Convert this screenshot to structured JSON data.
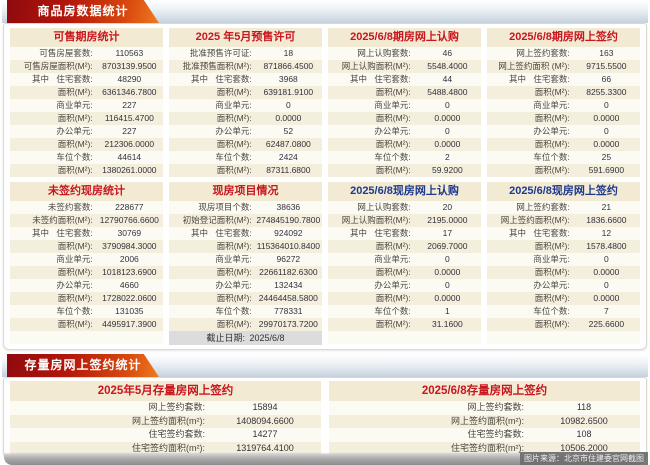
{
  "banners": [
    {
      "title": "商品房数据统计"
    },
    {
      "title": "存量房网上签约统计"
    }
  ],
  "colors": {
    "banner_red_dark": "#8f0a0e",
    "banner_orange": "#ef7b1f",
    "panel_title_red": "#c8161e",
    "panel_title_blue": "#1e3a8f",
    "panel_header_bg": "#f2ead3",
    "row_stripe_bg": "#f4eedd",
    "cutoff_footer_bg": "#dcdcdc"
  },
  "top_panels": [
    {
      "title": "可售期房统计",
      "title_color": "red",
      "rows": [
        {
          "prefix": "",
          "label": "可售房屋套数:",
          "value": "110563"
        },
        {
          "prefix": "",
          "label": "可售房屋面积(M²):",
          "value": "8703139.9500"
        },
        {
          "prefix": "其中",
          "label": "住宅套数:",
          "value": "48290"
        },
        {
          "prefix": "",
          "label": "面积(M²):",
          "value": "6361346.7800"
        },
        {
          "prefix": "",
          "label": "商业单元:",
          "value": "227"
        },
        {
          "prefix": "",
          "label": "面积(M²):",
          "value": "116415.4700"
        },
        {
          "prefix": "",
          "label": "办公单元:",
          "value": "227"
        },
        {
          "prefix": "",
          "label": "面积(M²):",
          "value": "212306.0000"
        },
        {
          "prefix": "",
          "label": "车位个数:",
          "value": "44614"
        },
        {
          "prefix": "",
          "label": "面积(M²):",
          "value": "1380261.0000"
        }
      ]
    },
    {
      "title": "2025 年5月预售许可",
      "title_color": "red",
      "rows": [
        {
          "prefix": "",
          "label": "批准预售许可证:",
          "value": "18"
        },
        {
          "prefix": "",
          "label": "批准预售面积(M²):",
          "value": "871866.4500"
        },
        {
          "prefix": "其中",
          "label": "住宅套数:",
          "value": "3968"
        },
        {
          "prefix": "",
          "label": "面积(M²):",
          "value": "639181.9100"
        },
        {
          "prefix": "",
          "label": "商业单元:",
          "value": "0"
        },
        {
          "prefix": "",
          "label": "面积(M²):",
          "value": "0.0000"
        },
        {
          "prefix": "",
          "label": "办公单元:",
          "value": "52"
        },
        {
          "prefix": "",
          "label": "面积(M²):",
          "value": "62487.0800"
        },
        {
          "prefix": "",
          "label": "车位个数:",
          "value": "2424"
        },
        {
          "prefix": "",
          "label": "面积(M²):",
          "value": "87311.6800"
        }
      ]
    },
    {
      "title": "2025/6/8期房网上认购",
      "title_color": "red",
      "rows": [
        {
          "prefix": "",
          "label": "网上认购套数:",
          "value": "46"
        },
        {
          "prefix": "",
          "label": "网上认购面积(M²):",
          "value": "5548.4000"
        },
        {
          "prefix": "其中",
          "label": "住宅套数:",
          "value": "44"
        },
        {
          "prefix": "",
          "label": "面积(M²):",
          "value": "5488.4800"
        },
        {
          "prefix": "",
          "label": "商业单元:",
          "value": "0"
        },
        {
          "prefix": "",
          "label": "面积(M²):",
          "value": "0.0000"
        },
        {
          "prefix": "",
          "label": "办公单元:",
          "value": "0"
        },
        {
          "prefix": "",
          "label": "面积(M²):",
          "value": "0.0000"
        },
        {
          "prefix": "",
          "label": "车位个数:",
          "value": "2"
        },
        {
          "prefix": "",
          "label": "面积(M²):",
          "value": "59.9200"
        }
      ]
    },
    {
      "title": "2025/6/8期房网上签约",
      "title_color": "red",
      "rows": [
        {
          "prefix": "",
          "label": "网上签约套数:",
          "value": "163"
        },
        {
          "prefix": "",
          "label": "网上签约面积 (M²):",
          "value": "9715.5500"
        },
        {
          "prefix": "其中",
          "label": "住宅套数:",
          "value": "66"
        },
        {
          "prefix": "",
          "label": "面积(M²):",
          "value": "8255.3300"
        },
        {
          "prefix": "",
          "label": "商业单元:",
          "value": "0"
        },
        {
          "prefix": "",
          "label": "面积(M²):",
          "value": "0.0000"
        },
        {
          "prefix": "",
          "label": "办公单元:",
          "value": "0"
        },
        {
          "prefix": "",
          "label": "面积(M²):",
          "value": "0.0000"
        },
        {
          "prefix": "",
          "label": "车位个数:",
          "value": "25"
        },
        {
          "prefix": "",
          "label": "面积(M²):",
          "value": "591.6900"
        }
      ]
    },
    {
      "title": "未签约现房统计",
      "title_color": "red",
      "trailing_blank_row": true,
      "rows": [
        {
          "prefix": "",
          "label": "未签约套数:",
          "value": "228677"
        },
        {
          "prefix": "",
          "label": "未签约面积(M²):",
          "value": "12790766.6600"
        },
        {
          "prefix": "其中",
          "label": "住宅套数:",
          "value": "30769"
        },
        {
          "prefix": "",
          "label": "面积(M²):",
          "value": "3790984.3000"
        },
        {
          "prefix": "",
          "label": "商业单元:",
          "value": "2006"
        },
        {
          "prefix": "",
          "label": "面积(M²):",
          "value": "1018123.6900"
        },
        {
          "prefix": "",
          "label": "办公单元:",
          "value": "4660"
        },
        {
          "prefix": "",
          "label": "面积(M²):",
          "value": "1728022.0600"
        },
        {
          "prefix": "",
          "label": "车位个数:",
          "value": "131035"
        },
        {
          "prefix": "",
          "label": "面积(M²):",
          "value": "4495917.3900"
        }
      ]
    },
    {
      "title": "现房项目情况",
      "title_color": "red",
      "rows": [
        {
          "prefix": "",
          "label": "现房项目个数:",
          "value": "38636"
        },
        {
          "prefix": "",
          "label": "初始登记面积(M²):",
          "value": "274845190.7800"
        },
        {
          "prefix": "其中",
          "label": "住宅套数:",
          "value": "924092"
        },
        {
          "prefix": "",
          "label": "面积(M²):",
          "value": "115364010.8400"
        },
        {
          "prefix": "",
          "label": "商业单元:",
          "value": "96272"
        },
        {
          "prefix": "",
          "label": "面积(M²):",
          "value": "22661182.6300"
        },
        {
          "prefix": "",
          "label": "办公单元:",
          "value": "132434"
        },
        {
          "prefix": "",
          "label": "面积(M²):",
          "value": "24464458.5800"
        },
        {
          "prefix": "",
          "label": "车位个数:",
          "value": "778331"
        },
        {
          "prefix": "",
          "label": "面积(M²):",
          "value": "29970173.7200"
        }
      ],
      "footer": {
        "label": "截止日期:",
        "value": "2025/6/8"
      }
    },
    {
      "title": "2025/6/8现房网上认购",
      "title_color": "blue",
      "trailing_blank_row": true,
      "rows": [
        {
          "prefix": "",
          "label": "网上认购套数:",
          "value": "20"
        },
        {
          "prefix": "",
          "label": "网上认购面积(M²):",
          "value": "2195.0000"
        },
        {
          "prefix": "其中",
          "label": "住宅套数:",
          "value": "17"
        },
        {
          "prefix": "",
          "label": "面积(M²):",
          "value": "2069.7000"
        },
        {
          "prefix": "",
          "label": "商业单元:",
          "value": "0"
        },
        {
          "prefix": "",
          "label": "面积(M²):",
          "value": "0.0000"
        },
        {
          "prefix": "",
          "label": "办公单元:",
          "value": "0"
        },
        {
          "prefix": "",
          "label": "面积(M²):",
          "value": "0.0000"
        },
        {
          "prefix": "",
          "label": "车位个数:",
          "value": "1"
        },
        {
          "prefix": "",
          "label": "面积(M²):",
          "value": "31.1600"
        }
      ]
    },
    {
      "title": "2025/6/8现房网上签约",
      "title_color": "blue",
      "trailing_blank_row": true,
      "rows": [
        {
          "prefix": "",
          "label": "网上签约套数:",
          "value": "21"
        },
        {
          "prefix": "",
          "label": "网上签约面积(M²):",
          "value": "1836.6600"
        },
        {
          "prefix": "其中",
          "label": "住宅套数:",
          "value": "12"
        },
        {
          "prefix": "",
          "label": "面积(M²):",
          "value": "1578.4800"
        },
        {
          "prefix": "",
          "label": "商业单元:",
          "value": "0"
        },
        {
          "prefix": "",
          "label": "面积(M²):",
          "value": "0.0000"
        },
        {
          "prefix": "",
          "label": "办公单元:",
          "value": "0"
        },
        {
          "prefix": "",
          "label": "面积(M²):",
          "value": "0.0000"
        },
        {
          "prefix": "",
          "label": "车位个数:",
          "value": "7"
        },
        {
          "prefix": "",
          "label": "面积(M²):",
          "value": "225.6600"
        }
      ]
    }
  ],
  "bottom_panels": [
    {
      "title": "2025年5月存量房网上签约",
      "title_color": "red",
      "rows": [
        {
          "prefix": "",
          "label": "网上签约套数:",
          "value": "15894"
        },
        {
          "prefix": "",
          "label": "网上签约面积(m²):",
          "value": "1408094.6600"
        },
        {
          "prefix": "",
          "label": "住宅签约套数:",
          "value": "14277"
        },
        {
          "prefix": "",
          "label": "住宅签约面积(m²):",
          "value": "1319764.4100"
        }
      ]
    },
    {
      "title": "2025/6/8存量房网上签约",
      "title_color": "red",
      "rows": [
        {
          "prefix": "",
          "label": "网上签约套数:",
          "value": "118"
        },
        {
          "prefix": "",
          "label": "网上签约面积(m²):",
          "value": "10982.6500"
        },
        {
          "prefix": "",
          "label": "住宅签约套数:",
          "value": "108"
        },
        {
          "prefix": "",
          "label": "住宅签约面积(m²):",
          "value": "10506.2000"
        }
      ]
    }
  ],
  "watermark": "图片来源：北京市住建委官网截图"
}
